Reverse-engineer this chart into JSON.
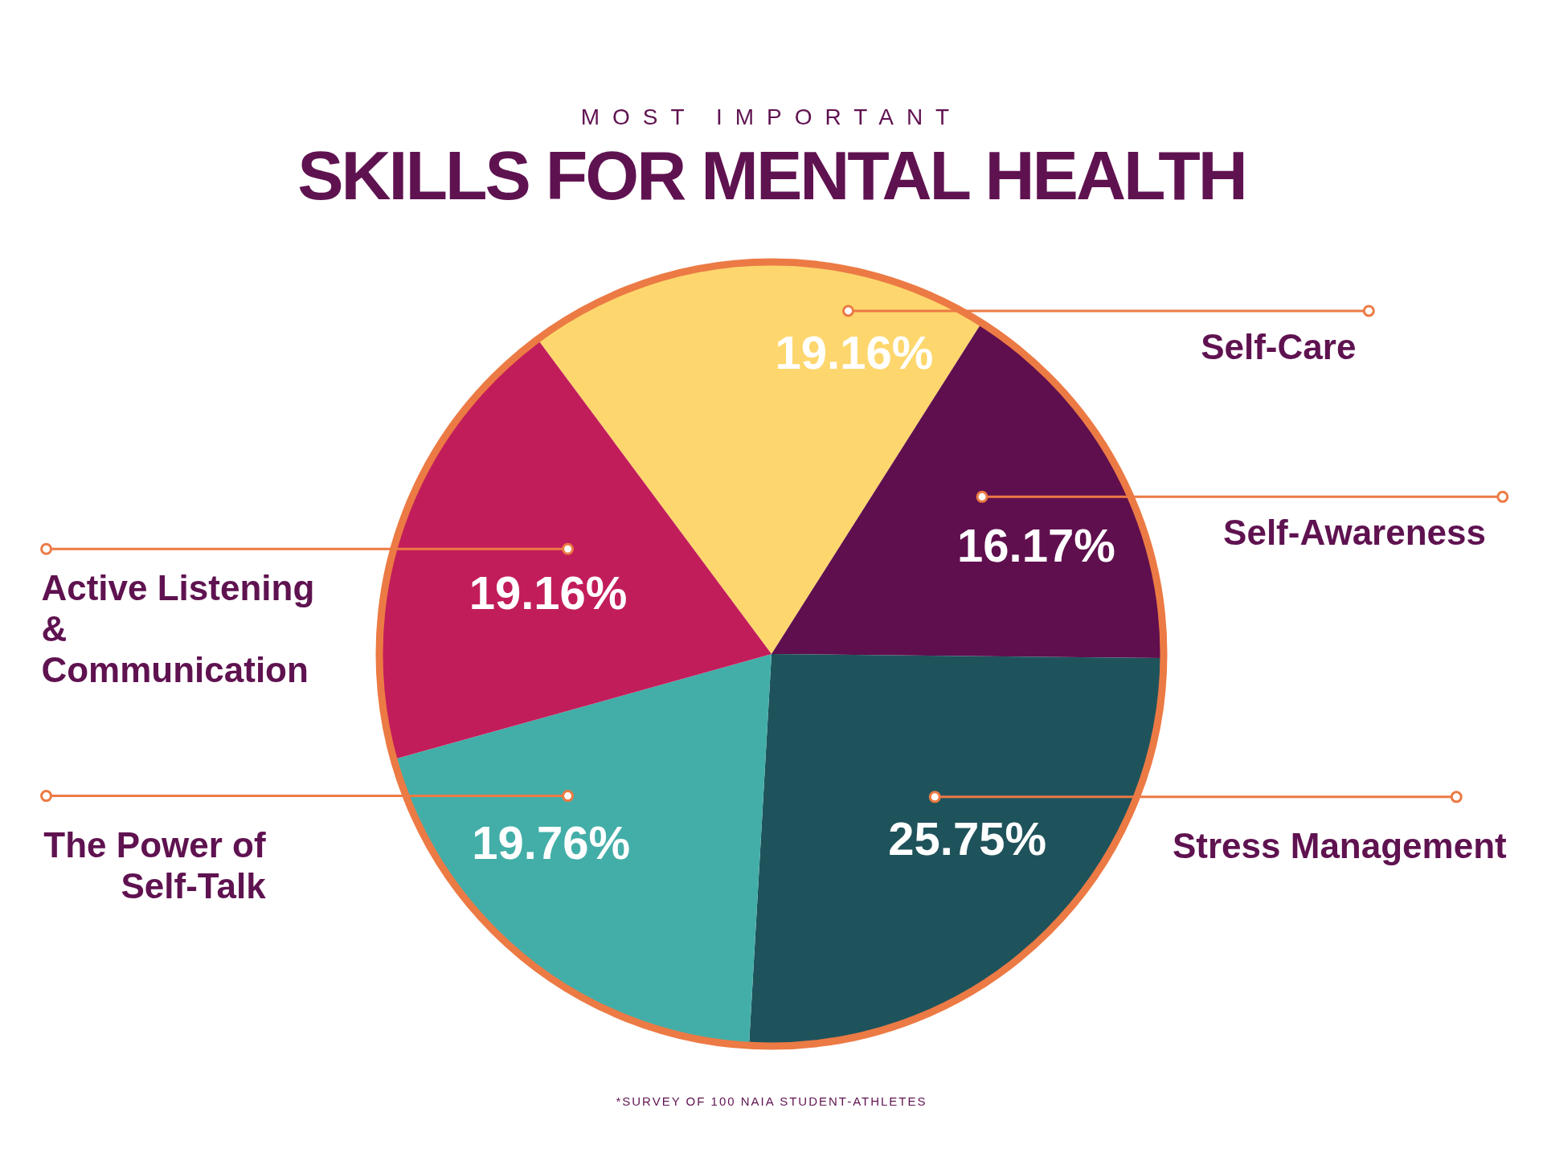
{
  "chart_data": {
    "type": "pie",
    "subtitle": "MOST IMPORTANT",
    "title": "SKILLS FOR MENTAL HEALTH",
    "categories": [
      "Self-Care",
      "Self-Awareness",
      "Stress Management",
      "The Power of Self-Talk",
      "Active Listening & Communication"
    ],
    "values": [
      19.16,
      16.17,
      25.75,
      19.76,
      19.16
    ],
    "colors": [
      "#fdd76e",
      "#5f0f4e",
      "#1f535b",
      "#43aea8",
      "#c21d5b"
    ],
    "value_labels": [
      "19.16%",
      "16.17%",
      "25.75%",
      "19.76%",
      "19.16%"
    ],
    "legend": false,
    "annotations": [
      "*SURVEY OF 100 NAIA STUDENT-ATHLETES"
    ]
  }
}
